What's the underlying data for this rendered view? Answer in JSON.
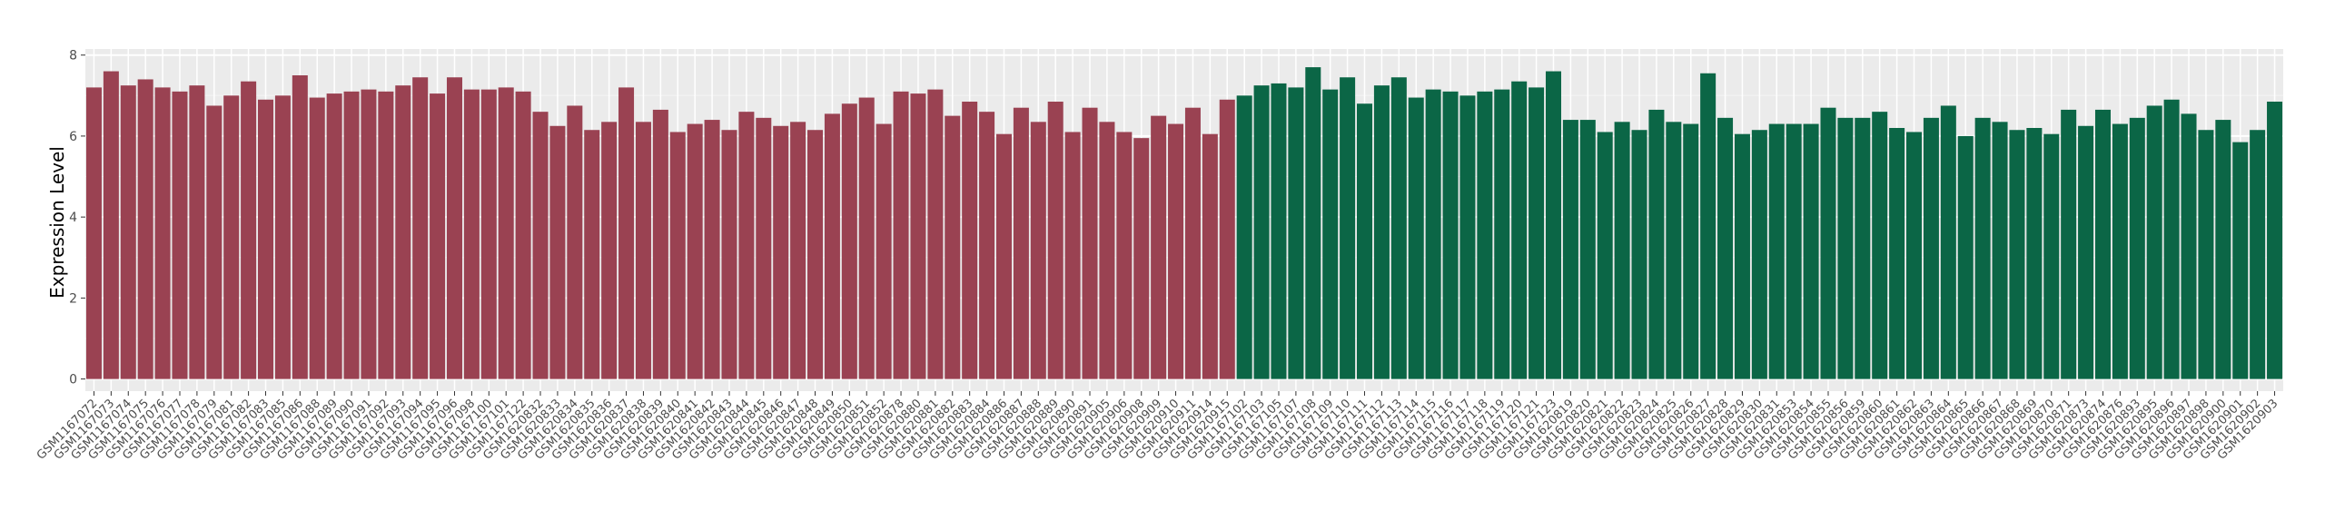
{
  "chart_data": {
    "type": "bar",
    "y_label": "Expression Level",
    "categories": [
      "GSM1167072",
      "GSM1167073",
      "GSM1167074",
      "GSM1167075",
      "GSM1167076",
      "GSM1167077",
      "GSM1167078",
      "GSM1167079",
      "GSM1167081",
      "GSM1167082",
      "GSM1167083",
      "GSM1167085",
      "GSM1167086",
      "GSM1167088",
      "GSM1167089",
      "GSM1167090",
      "GSM1167091",
      "GSM1167092",
      "GSM1167093",
      "GSM1167094",
      "GSM1167095",
      "GSM1167096",
      "GSM1167098",
      "GSM1167100",
      "GSM1167101",
      "GSM1167122",
      "GSM1620832",
      "GSM1620833",
      "GSM1620834",
      "GSM1620835",
      "GSM1620836",
      "GSM1620837",
      "GSM1620838",
      "GSM1620839",
      "GSM1620840",
      "GSM1620841",
      "GSM1620842",
      "GSM1620843",
      "GSM1620844",
      "GSM1620845",
      "GSM1620846",
      "GSM1620847",
      "GSM1620848",
      "GSM1620849",
      "GSM1620850",
      "GSM1620851",
      "GSM1620852",
      "GSM1620878",
      "GSM1620880",
      "GSM1620881",
      "GSM1620882",
      "GSM1620883",
      "GSM1620884",
      "GSM1620886",
      "GSM1620887",
      "GSM1620888",
      "GSM1620889",
      "GSM1620890",
      "GSM1620891",
      "GSM1620905",
      "GSM1620906",
      "GSM1620908",
      "GSM1620909",
      "GSM1620910",
      "GSM1620911",
      "GSM1620914",
      "GSM1620915",
      "GSM1167102",
      "GSM1167103",
      "GSM1167105",
      "GSM1167107",
      "GSM1167108",
      "GSM1167109",
      "GSM1167110",
      "GSM1167111",
      "GSM1167112",
      "GSM1167113",
      "GSM1167114",
      "GSM1167115",
      "GSM1167116",
      "GSM1167117",
      "GSM1167118",
      "GSM1167119",
      "GSM1167120",
      "GSM1167121",
      "GSM1167123",
      "GSM1620819",
      "GSM1620820",
      "GSM1620821",
      "GSM1620822",
      "GSM1620823",
      "GSM1620824",
      "GSM1620825",
      "GSM1620826",
      "GSM1620827",
      "GSM1620828",
      "GSM1620829",
      "GSM1620830",
      "GSM1620831",
      "GSM1620853",
      "GSM1620854",
      "GSM1620855",
      "GSM1620856",
      "GSM1620859",
      "GSM1620860",
      "GSM1620861",
      "GSM1620862",
      "GSM1620863",
      "GSM1620864",
      "GSM1620865",
      "GSM1620866",
      "GSM1620867",
      "GSM1620868",
      "GSM1620869",
      "GSM1620870",
      "GSM1620871",
      "GSM1620873",
      "GSM1620874",
      "GSM1620876",
      "GSM1620893",
      "GSM1620895",
      "GSM1620896",
      "GSM1620897",
      "GSM1620898",
      "GSM1620900",
      "GSM1620901",
      "GSM1620902",
      "GSM1620903"
    ],
    "series": [
      {
        "color": "#9a4252",
        "values": [
          7.2,
          7.6,
          7.25,
          7.4,
          7.2,
          7.1,
          7.25,
          6.75,
          7.0,
          7.35,
          6.9,
          7.0,
          7.5,
          6.95,
          7.05,
          7.1,
          7.15,
          7.1,
          7.25,
          7.45,
          7.05,
          7.45,
          7.15,
          7.15,
          7.2,
          7.1,
          6.6,
          6.25,
          6.75,
          6.15,
          6.35,
          7.2,
          6.35,
          6.65,
          6.1,
          6.3,
          6.4,
          6.15,
          6.6,
          6.45,
          6.25,
          6.35,
          6.15,
          6.55,
          6.8,
          6.95,
          6.3,
          7.1,
          7.05,
          7.15,
          6.5,
          6.85,
          6.6,
          6.05,
          6.7,
          6.35,
          6.85,
          6.1,
          6.7,
          6.35,
          6.1,
          5.95,
          6.5,
          6.3,
          6.7,
          6.05,
          6.9,
          null,
          null,
          null,
          null,
          null,
          null,
          null,
          null,
          null,
          null,
          null,
          null,
          null,
          null,
          null,
          null,
          null,
          null,
          null,
          null,
          null,
          null,
          null,
          null,
          null,
          null,
          null,
          null,
          null,
          null,
          null,
          null,
          null,
          null,
          null,
          null,
          null,
          null,
          null,
          null,
          null,
          null,
          null,
          null,
          null,
          null,
          null,
          null,
          null,
          null,
          null,
          null,
          null,
          null,
          null,
          null,
          null,
          null,
          null,
          null,
          null
        ]
      },
      {
        "color": "#0b6646",
        "values": [
          null,
          null,
          null,
          null,
          null,
          null,
          null,
          null,
          null,
          null,
          null,
          null,
          null,
          null,
          null,
          null,
          null,
          null,
          null,
          null,
          null,
          null,
          null,
          null,
          null,
          null,
          null,
          null,
          null,
          null,
          null,
          null,
          null,
          null,
          null,
          null,
          null,
          null,
          null,
          null,
          null,
          null,
          null,
          null,
          null,
          null,
          null,
          null,
          null,
          null,
          null,
          null,
          null,
          null,
          null,
          null,
          null,
          null,
          null,
          null,
          null,
          null,
          null,
          null,
          null,
          null,
          null,
          7.0,
          7.25,
          7.3,
          7.2,
          7.7,
          7.15,
          7.45,
          6.8,
          7.25,
          7.45,
          6.95,
          7.15,
          7.1,
          7.0,
          7.1,
          7.15,
          7.35,
          7.2,
          7.6,
          6.4,
          6.4,
          6.1,
          6.35,
          6.15,
          6.65,
          6.35,
          6.3,
          7.55,
          6.45,
          6.05,
          6.15,
          6.3,
          6.3,
          6.3,
          6.7,
          6.45,
          6.45,
          6.6,
          6.2,
          6.1,
          6.45,
          6.75,
          6.0,
          6.45,
          6.35,
          6.15,
          6.2,
          6.05,
          6.65,
          6.25,
          6.65,
          6.3,
          6.45,
          6.75,
          6.9,
          6.55,
          6.15,
          6.4,
          5.85,
          6.15,
          6.85
        ]
      }
    ],
    "ylim": [
      -0.3,
      8.15
    ],
    "yticks": [
      0,
      2,
      4,
      6,
      8
    ],
    "grid": true
  }
}
